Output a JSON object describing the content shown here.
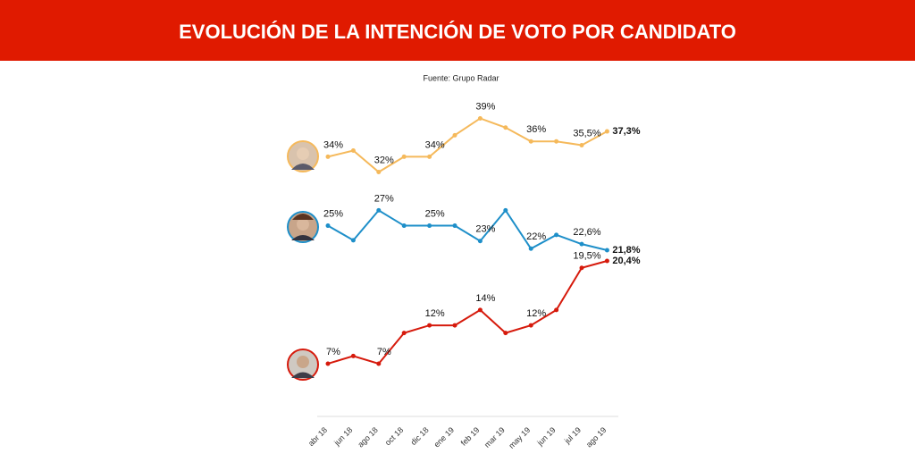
{
  "chart_data": {
    "type": "line",
    "title": "EVOLUCIÓN DE LA INTENCIÓN DE VOTO POR CANDIDATO",
    "subtitle": "Fuente: Grupo Radar",
    "categories": [
      "abr 18",
      "jun 18",
      "ago 18",
      "oct 18",
      "dic 18",
      "ene 19",
      "feb 19",
      "mar 19",
      "may 19",
      "jun 19",
      "jul 19",
      "ago 19"
    ],
    "ylim": [
      0,
      45
    ],
    "series": [
      {
        "color": "#f5b95b",
        "values": [
          34,
          34.8,
          32,
          34,
          34,
          36.8,
          39,
          37.8,
          36,
          36,
          35.5,
          37.3
        ],
        "value_labels": [
          "34%",
          null,
          "32%",
          null,
          "34%",
          null,
          "39%",
          null,
          "36%",
          null,
          "35,5%",
          "37,3%"
        ]
      },
      {
        "color": "#1e8fc9",
        "values": [
          25,
          23.1,
          27,
          25,
          25,
          25,
          23,
          27,
          22,
          23.8,
          22.6,
          21.8
        ],
        "value_labels": [
          "25%",
          null,
          "27%",
          null,
          "25%",
          null,
          "23%",
          null,
          "22%",
          null,
          "22,6%",
          "21,8%"
        ]
      },
      {
        "color": "#d61a0c",
        "values": [
          7,
          8,
          7,
          11,
          12,
          12,
          14,
          11,
          12,
          14,
          19.5,
          20.4
        ],
        "value_labels": [
          "7%",
          null,
          "7%",
          null,
          "12%",
          null,
          "14%",
          null,
          "12%",
          null,
          "19,5%",
          "20,4%"
        ]
      }
    ]
  }
}
